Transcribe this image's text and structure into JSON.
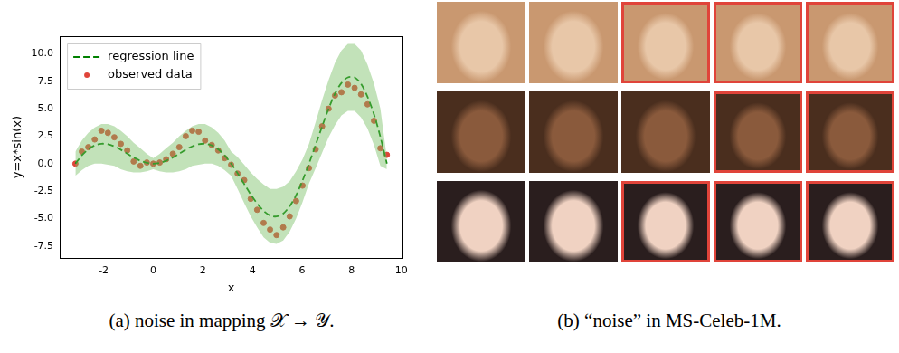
{
  "chart_data": {
    "type": "line",
    "x_label": "x",
    "y_label": "y=x*sin(x)",
    "x": [
      -3.14,
      -2.88,
      -2.62,
      -2.36,
      -2.09,
      -1.83,
      -1.57,
      -1.31,
      -1.05,
      -0.79,
      -0.52,
      -0.26,
      0,
      0.26,
      0.52,
      0.79,
      1.05,
      1.31,
      1.57,
      1.83,
      2.09,
      2.36,
      2.62,
      2.88,
      3.14,
      3.4,
      3.67,
      3.93,
      4.19,
      4.45,
      4.71,
      4.97,
      5.24,
      5.5,
      5.76,
      6.02,
      6.28,
      6.55,
      6.81,
      7.07,
      7.33,
      7.59,
      7.85,
      8.12,
      8.38,
      8.64,
      8.9,
      9.16,
      9.42
    ],
    "series": [
      {
        "name": "regression line",
        "type": "line",
        "color": "#008000",
        "line_style": "dashed",
        "values": [
          0,
          0.75,
          1.3,
          1.66,
          1.81,
          1.77,
          1.57,
          1.27,
          0.91,
          0.56,
          0.26,
          0.07,
          0,
          0.07,
          0.26,
          0.56,
          0.91,
          1.27,
          1.57,
          1.77,
          1.81,
          1.66,
          1.3,
          0.75,
          0,
          -0.87,
          -1.86,
          -2.8,
          -3.63,
          -4.3,
          -4.71,
          -4.81,
          -4.54,
          -3.88,
          -2.88,
          -1.54,
          0,
          1.72,
          3.39,
          4.99,
          6.37,
          7.35,
          7.85,
          7.85,
          7.26,
          6.09,
          4.5,
          2.43,
          0
        ],
        "band_lower": [
          -1.1,
          -0.6,
          -0.2,
          0,
          0,
          -0.1,
          -0.2,
          -0.5,
          -0.7,
          -0.8,
          -0.8,
          -0.7,
          -0.5,
          -0.7,
          -0.8,
          -0.8,
          -0.7,
          -0.5,
          -0.2,
          -0.1,
          0,
          0,
          -0.2,
          -0.6,
          -1.1,
          -2.3,
          -3.6,
          -4.8,
          -5.8,
          -6.7,
          -7.2,
          -7.3,
          -7,
          -6.2,
          -5,
          -3.5,
          -1.8,
          -0.4,
          1,
          2.4,
          3.5,
          4.4,
          4.8,
          4.8,
          4.2,
          3.2,
          1.7,
          -0.2,
          -0.5
        ],
        "band_upper": [
          1.1,
          2.1,
          2.8,
          3.3,
          3.6,
          3.6,
          3.4,
          3,
          2.5,
          1.9,
          1.4,
          0.9,
          0.5,
          0.9,
          1.4,
          1.9,
          2.5,
          3,
          3.4,
          3.6,
          3.6,
          3.3,
          2.8,
          2.1,
          1.1,
          0.6,
          -0.1,
          -0.8,
          -1.4,
          -1.9,
          -2.3,
          -2.3,
          -2.1,
          -1.6,
          -0.7,
          0.4,
          1.8,
          3.8,
          5.8,
          7.6,
          9.2,
          10.3,
          10.9,
          10.9,
          10.3,
          9,
          7.3,
          5,
          0.5
        ]
      },
      {
        "name": "observed data",
        "type": "scatter",
        "color": "#e0443a",
        "marker": "circle",
        "values": [
          0,
          1.1,
          1.5,
          2.2,
          3,
          2.8,
          2.4,
          1.8,
          1.2,
          0.2,
          -0.2,
          0.1,
          0,
          0.1,
          0.4,
          0.9,
          1.5,
          2.5,
          3,
          2.9,
          2.1,
          1.7,
          1.2,
          0.5,
          -0.1,
          -0.9,
          -1.5,
          -3.2,
          -4.2,
          -5.4,
          -6,
          -6.5,
          -5.8,
          -4.8,
          -3.4,
          -2,
          -0.4,
          1.3,
          3.4,
          5,
          6.2,
          6.5,
          7.2,
          6.9,
          6.3,
          5.4,
          3.9,
          1.4,
          0.8
        ]
      }
    ],
    "xlim": [
      -3.77,
      10.05
    ],
    "xticks": [
      -2,
      0,
      2,
      4,
      6,
      8,
      10
    ],
    "ylim": [
      -8.6,
      11.6
    ],
    "yticks": [
      -7.5,
      {
        "value": -5,
        "label": "-5.0"
      },
      -2.5,
      {
        "value": 0,
        "label": "0.0"
      },
      2.5,
      {
        "value": 5,
        "label": "5.0"
      },
      7.5,
      {
        "value": 10,
        "label": "10.0"
      }
    ],
    "grid": false,
    "legend": "upper left"
  },
  "image_grid": {
    "highlighted": [
      [
        false,
        false,
        true,
        true,
        true
      ],
      [
        false,
        false,
        false,
        true,
        true
      ],
      [
        false,
        false,
        true,
        true,
        true
      ]
    ]
  },
  "captions": {
    "a": "(a) noise in mapping 𝒳 → 𝒴.",
    "b": "(b) “noise” in MS-Celeb-1M."
  }
}
